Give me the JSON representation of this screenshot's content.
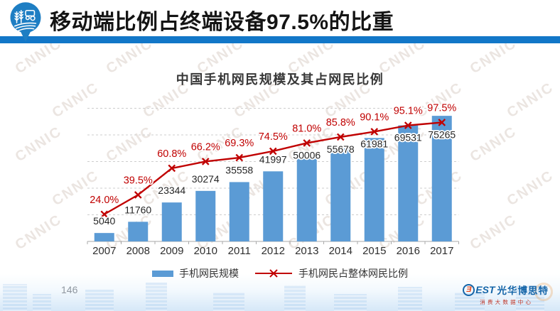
{
  "header": {
    "title": "移动端比例占终端设备97.5%的比重",
    "logo": "agriculture-location-pin-logo"
  },
  "watermark": {
    "text": "CNNIC"
  },
  "chart_data": {
    "type": "combo-bar-line",
    "title": "中国手机网民规模及其占网民比例",
    "categories": [
      "2007",
      "2008",
      "2009",
      "2010",
      "2011",
      "2012",
      "2013",
      "2014",
      "2015",
      "2016",
      "2017"
    ],
    "series": [
      {
        "name": "手机网民规模",
        "type": "bar",
        "color": "#5B9BD5",
        "values": [
          5040,
          11760,
          23344,
          30274,
          35558,
          41997,
          50006,
          55678,
          61981,
          69531,
          75265
        ]
      },
      {
        "name": "手机网民占整体网民比例",
        "type": "line",
        "color": "#C00000",
        "marker": "x",
        "unit": "%",
        "values": [
          24.0,
          39.5,
          60.8,
          66.2,
          69.3,
          74.5,
          81.0,
          85.8,
          90.1,
          95.1,
          97.5
        ]
      }
    ],
    "ylim": [
      0,
      80000
    ],
    "y2lim": [
      0,
      110
    ],
    "grid": "horizontal-dashed",
    "gridline_count": 5,
    "legend_position": "bottom",
    "value_labels": "shown",
    "percent_labels": "shown"
  },
  "footer": {
    "page_number": "146",
    "brand": {
      "b_glyph": "Ǝ",
      "est": "EST",
      "name": "光华博思特",
      "subtitle": "消费大数据中心"
    }
  },
  "colors": {
    "header_bar": "#1277C8",
    "bar": "#5B9BD5",
    "line": "#C00000",
    "value_label": "#262626"
  }
}
